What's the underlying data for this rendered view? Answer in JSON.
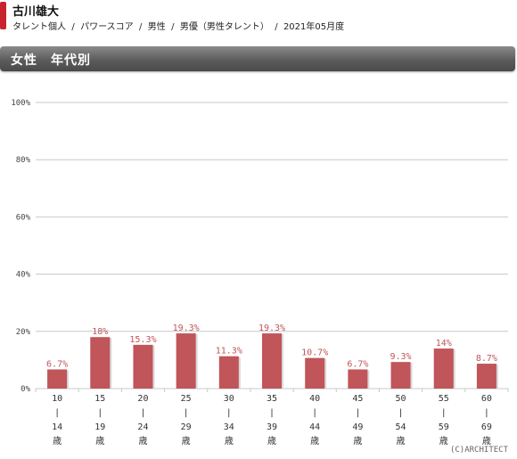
{
  "header": {
    "title": "古川雄大",
    "crumbs": [
      "タレント個人",
      "パワースコア",
      "男性",
      "男優（男性タレント）",
      "2021年05月度"
    ]
  },
  "section": {
    "title": "女性　年代別"
  },
  "colors": {
    "bar": "#c0555a",
    "label": "#c0555a",
    "grid": "#c8c8c8",
    "accent": "#c8242c"
  },
  "chart_data": {
    "type": "bar",
    "categories": [
      "10|14歳",
      "15|19歳",
      "20|24歳",
      "25|29歳",
      "30|34歳",
      "35|39歳",
      "40|44歳",
      "45|49歳",
      "50|54歳",
      "55|59歳",
      "60|69歳"
    ],
    "category_lines": [
      [
        "10",
        "|",
        "14",
        "歳"
      ],
      [
        "15",
        "|",
        "19",
        "歳"
      ],
      [
        "20",
        "|",
        "24",
        "歳"
      ],
      [
        "25",
        "|",
        "29",
        "歳"
      ],
      [
        "30",
        "|",
        "34",
        "歳"
      ],
      [
        "35",
        "|",
        "39",
        "歳"
      ],
      [
        "40",
        "|",
        "44",
        "歳"
      ],
      [
        "45",
        "|",
        "49",
        "歳"
      ],
      [
        "50",
        "|",
        "54",
        "歳"
      ],
      [
        "55",
        "|",
        "59",
        "歳"
      ],
      [
        "60",
        "|",
        "69",
        "歳"
      ]
    ],
    "values": [
      6.7,
      18,
      15.3,
      19.3,
      11.3,
      19.3,
      10.7,
      6.7,
      9.3,
      14,
      8.7
    ],
    "value_labels": [
      "6.7%",
      "18%",
      "15.3%",
      "19.3%",
      "11.3%",
      "19.3%",
      "10.7%",
      "6.7%",
      "9.3%",
      "14%",
      "8.7%"
    ],
    "y_ticks": [
      0,
      20,
      40,
      60,
      80,
      100
    ],
    "y_tick_labels": [
      "0%",
      "20%",
      "40%",
      "60%",
      "80%",
      "100%"
    ],
    "ylim": [
      0,
      100
    ],
    "grid": true,
    "title": "",
    "xlabel": "",
    "ylabel": ""
  },
  "footer": {
    "copyright": "(C)ARCHITECT"
  }
}
